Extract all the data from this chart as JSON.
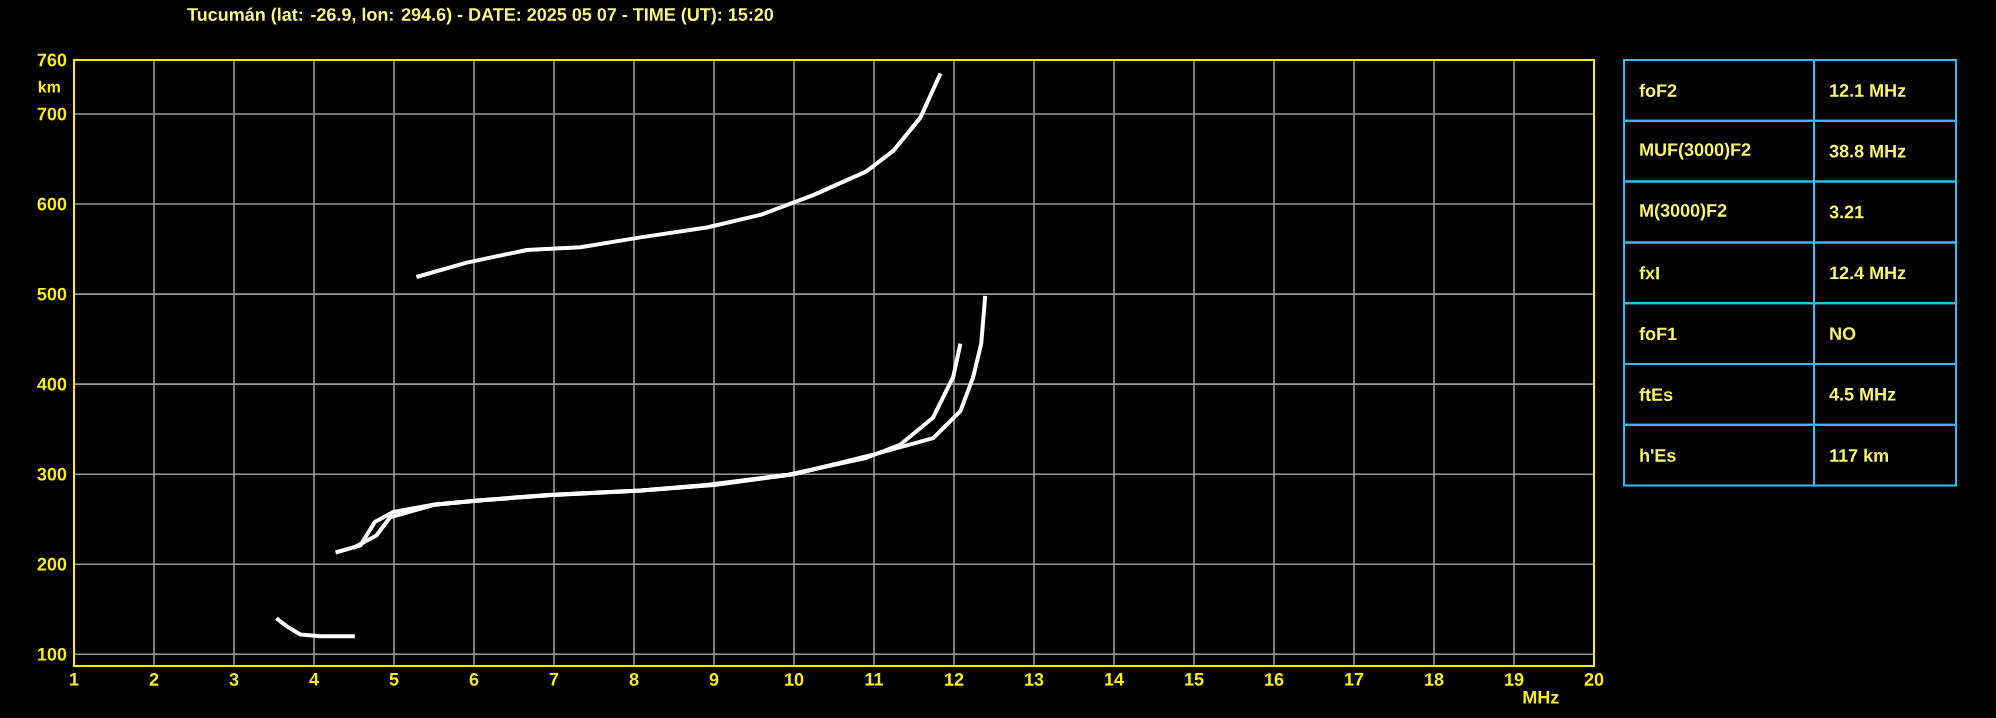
{
  "chart_data": [
    {
      "type": "line",
      "title": "Tucumán (lat: -26.9, lon: 294.6) - DATE: 2025 05 07 - TIME (UT): 15:20",
      "xlabel": "MHz",
      "ylabel": "km",
      "xlim": [
        1,
        20
      ],
      "ylim": [
        87,
        760
      ],
      "xticks": [
        1,
        2,
        3,
        4,
        5,
        6,
        7,
        8,
        9,
        10,
        11,
        12,
        13,
        14,
        15,
        16,
        17,
        18,
        19,
        20
      ],
      "yticks": [
        100,
        200,
        300,
        400,
        500,
        600,
        700,
        760
      ],
      "grid": true,
      "marker": "none",
      "series": [
        {
          "color": "#ffffff",
          "x": [
            3.53,
            3.66,
            3.83,
            4.08,
            4.51
          ],
          "values": [
            140,
            131,
            122,
            120,
            120
          ]
        },
        {
          "color": "#ffffff",
          "x": [
            4.27,
            4.58,
            4.76,
            4.99,
            5.49,
            6.08,
            6.91,
            8.08,
            8.9,
            9.9,
            10.9,
            11.33,
            11.74,
            11.99,
            12.08
          ],
          "values": [
            213,
            221,
            247,
            258,
            266,
            271,
            277,
            282,
            288,
            299,
            318,
            333,
            363,
            408,
            445
          ]
        },
        {
          "color": "#ffffff",
          "x": [
            4.49,
            4.78,
            4.95,
            5.5,
            6.1,
            7.0,
            8.1,
            9.0,
            10.0,
            11.0,
            11.74,
            12.08,
            12.24,
            12.34,
            12.39
          ],
          "values": [
            218,
            232,
            252,
            266,
            271,
            277,
            282,
            288,
            300,
            322,
            340,
            370,
            408,
            445,
            498
          ]
        },
        {
          "color": "#ffffff",
          "x": [
            5.28,
            5.91,
            6.66,
            7.33,
            8.08,
            8.91,
            9.58,
            10.24,
            10.9,
            11.24,
            11.58,
            11.83
          ],
          "values": [
            519,
            535,
            549,
            552,
            563,
            574,
            588,
            610,
            636,
            659,
            696,
            745
          ]
        }
      ]
    },
    {
      "type": "other",
      "annotations": [
        "foF2",
        "12.1 MHz",
        "MUF(3000)F2",
        "38.8 MHz",
        "M(3000)F2",
        "3.21",
        "fxI",
        "12.4 MHz",
        "foF1",
        "NO",
        "ftEs",
        "4.5 MHz",
        "h'Es",
        "117 km"
      ]
    }
  ]
}
